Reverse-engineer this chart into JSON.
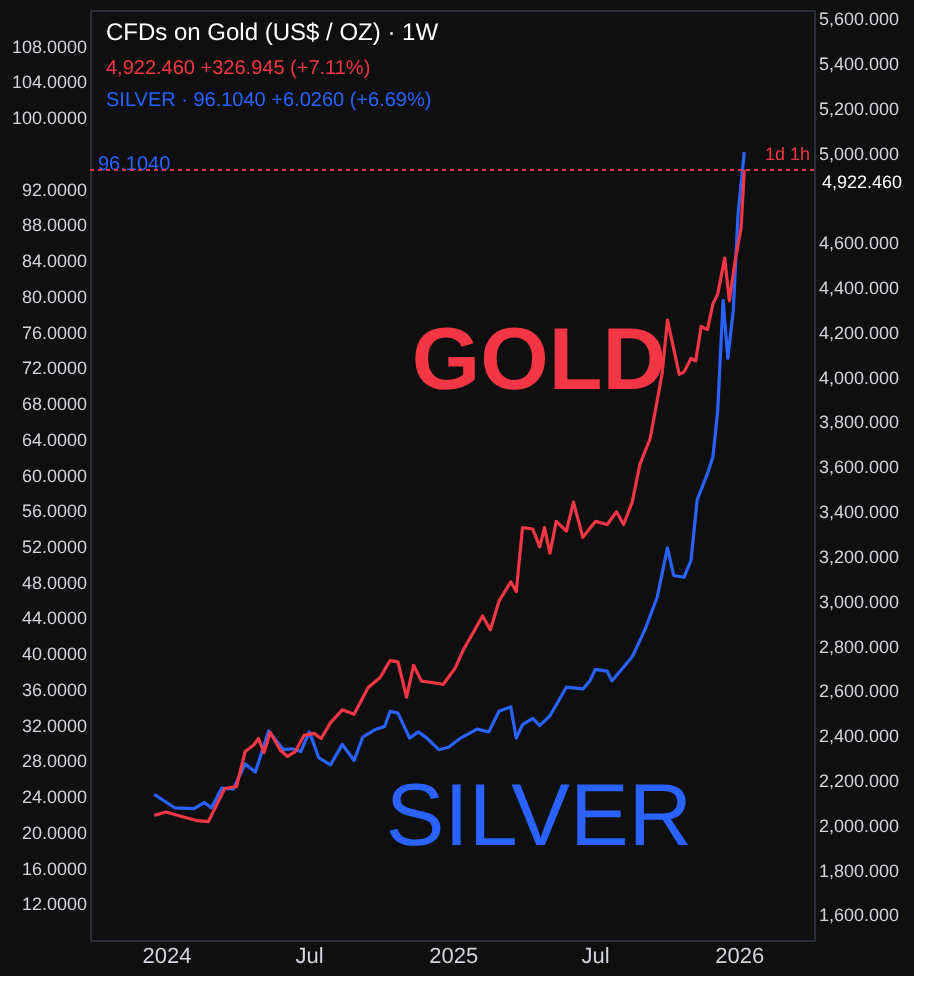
{
  "chart_data": {
    "type": "line",
    "title": "CFDs on Gold (US$ / OZ) · 1W",
    "annotations": [
      "4,922.460 +326.945 (+7.11%)",
      "SILVER · 96.1040 +6.0260 (+6.69%)",
      "96.1040",
      "1d 1h"
    ],
    "xlim": [
      "2023-09-26",
      "2026-04-07"
    ],
    "xticks": [
      {
        "value": "2024-01-01",
        "label": "2024"
      },
      {
        "value": "2024-07-01",
        "label": "Jul"
      },
      {
        "value": "2025-01-01",
        "label": "2025"
      },
      {
        "value": "2025-07-01",
        "label": "Jul"
      },
      {
        "value": "2026-01-01",
        "label": "2026"
      }
    ],
    "ylim": [
      7.9,
      112
    ],
    "yticks": [
      {
        "value": 12,
        "label": "12.0000"
      },
      {
        "value": 16,
        "label": "16.0000"
      },
      {
        "value": 20,
        "label": "20.0000"
      },
      {
        "value": 24,
        "label": "24.0000"
      },
      {
        "value": 28,
        "label": "28.0000"
      },
      {
        "value": 32,
        "label": "32.0000"
      },
      {
        "value": 36,
        "label": "36.0000"
      },
      {
        "value": 40,
        "label": "40.0000"
      },
      {
        "value": 44,
        "label": "44.0000"
      },
      {
        "value": 48,
        "label": "48.0000"
      },
      {
        "value": 52,
        "label": "52.0000"
      },
      {
        "value": 56,
        "label": "56.0000"
      },
      {
        "value": 60,
        "label": "60.0000"
      },
      {
        "value": 64,
        "label": "64.0000"
      },
      {
        "value": 68,
        "label": "68.0000"
      },
      {
        "value": 72,
        "label": "72.0000"
      },
      {
        "value": 76,
        "label": "76.0000"
      },
      {
        "value": 80,
        "label": "80.0000"
      },
      {
        "value": 84,
        "label": "84.0000"
      },
      {
        "value": 88,
        "label": "88.0000"
      },
      {
        "value": 92,
        "label": "92.0000"
      },
      {
        "value": 100,
        "label": "100.0000"
      },
      {
        "value": 104,
        "label": "104.0000"
      },
      {
        "value": 108,
        "label": "108.0000"
      }
    ],
    "y2lim": [
      1486,
      5636
    ],
    "y2ticks": [
      {
        "value": 1600,
        "label": "1,600.000"
      },
      {
        "value": 1800,
        "label": "1,800.000"
      },
      {
        "value": 2000,
        "label": "2,000.000"
      },
      {
        "value": 2200,
        "label": "2,200.000"
      },
      {
        "value": 2400,
        "label": "2,400.000"
      },
      {
        "value": 2600,
        "label": "2,600.000"
      },
      {
        "value": 2800,
        "label": "2,800.000"
      },
      {
        "value": 3000,
        "label": "3,000.000"
      },
      {
        "value": 3200,
        "label": "3,200.000"
      },
      {
        "value": 3400,
        "label": "3,400.000"
      },
      {
        "value": 3600,
        "label": "3,600.000"
      },
      {
        "value": 3800,
        "label": "3,800.000"
      },
      {
        "value": 4000,
        "label": "4,000.000"
      },
      {
        "value": 4200,
        "label": "4,200.000"
      },
      {
        "value": 4400,
        "label": "4,400.000"
      },
      {
        "value": 4600,
        "label": "4,600.000"
      },
      {
        "value": 5000,
        "label": "5,000.000"
      },
      {
        "value": 5200,
        "label": "5,200.000"
      },
      {
        "value": 5400,
        "label": "5,400.000"
      },
      {
        "value": 5600,
        "label": "5,600.000"
      }
    ],
    "ref_lines": [
      {
        "axis": "y2",
        "value": 4922.46,
        "label": "4,922.460",
        "color": "#f23645",
        "line_style": "dotted"
      }
    ],
    "grid": false,
    "marker": "none",
    "line_style": "solid",
    "series": [
      {
        "name": "SILVER",
        "color": "#2962ff",
        "axis": "y",
        "x": [
          "2023-12-17",
          "2024-01-12",
          "2024-02-06",
          "2024-02-19",
          "2024-02-28",
          "2024-03-12",
          "2024-03-27",
          "2024-04-11",
          "2024-04-24",
          "2024-05-11",
          "2024-05-20",
          "2024-05-30",
          "2024-06-10",
          "2024-06-21",
          "2024-07-02",
          "2024-07-14",
          "2024-07-29",
          "2024-08-13",
          "2024-08-28",
          "2024-09-08",
          "2024-09-25",
          "2024-10-06",
          "2024-10-13",
          "2024-10-23",
          "2024-11-07",
          "2024-11-18",
          "2024-11-29",
          "2024-12-14",
          "2024-12-27",
          "2025-01-11",
          "2025-02-01",
          "2025-02-16",
          "2025-03-01",
          "2025-03-16",
          "2025-03-23",
          "2025-03-31",
          "2025-04-13",
          "2025-04-22",
          "2025-05-05",
          "2025-05-26",
          "2025-06-16",
          "2025-06-25",
          "2025-07-02",
          "2025-07-17",
          "2025-07-23",
          "2025-08-18",
          "2025-09-04",
          "2025-09-19",
          "2025-10-02",
          "2025-10-10",
          "2025-10-23",
          "2025-11-01",
          "2025-11-09",
          "2025-11-22",
          "2025-11-29",
          "2025-12-05",
          "2025-12-12",
          "2025-12-18",
          "2025-12-25",
          "2025-12-31",
          "2026-01-08"
        ],
        "values": [
          24.2,
          22.7,
          22.6,
          23.3,
          22.7,
          24.9,
          24.8,
          27.6,
          26.7,
          31.3,
          30.3,
          29.2,
          29.3,
          29.0,
          31.2,
          28.3,
          27.5,
          29.8,
          28.0,
          30.6,
          31.5,
          31.8,
          33.5,
          33.3,
          30.5,
          31.2,
          30.5,
          29.2,
          29.5,
          30.5,
          31.5,
          31.2,
          33.5,
          34.0,
          30.5,
          32.0,
          32.7,
          31.9,
          33.0,
          36.2,
          36.0,
          36.9,
          38.2,
          38.0,
          36.9,
          39.6,
          42.8,
          46.3,
          51.8,
          48.7,
          48.5,
          50.4,
          57.2,
          60.1,
          62.0,
          67.0,
          79.5,
          73.0,
          78.4,
          89.1,
          96.1
        ]
      },
      {
        "name": "GOLD",
        "color": "#f23645",
        "axis": "y2",
        "x": [
          "2023-12-17",
          "2024-01-01",
          "2024-01-22",
          "2024-02-09",
          "2024-02-24",
          "2024-03-05",
          "2024-03-16",
          "2024-03-31",
          "2024-04-11",
          "2024-04-22",
          "2024-04-28",
          "2024-05-05",
          "2024-05-13",
          "2024-05-26",
          "2024-06-04",
          "2024-06-14",
          "2024-06-25",
          "2024-07-08",
          "2024-07-17",
          "2024-07-29",
          "2024-08-13",
          "2024-08-28",
          "2024-09-15",
          "2024-09-30",
          "2024-10-13",
          "2024-10-23",
          "2024-11-03",
          "2024-11-12",
          "2024-11-22",
          "2024-12-05",
          "2024-12-20",
          "2025-01-04",
          "2025-01-15",
          "2025-01-28",
          "2025-02-08",
          "2025-02-18",
          "2025-03-01",
          "2025-03-16",
          "2025-03-23",
          "2025-03-31",
          "2025-04-13",
          "2025-04-22",
          "2025-04-28",
          "2025-05-05",
          "2025-05-13",
          "2025-05-26",
          "2025-06-04",
          "2025-06-16",
          "2025-07-02",
          "2025-07-17",
          "2025-07-29",
          "2025-08-07",
          "2025-08-18",
          "2025-08-28",
          "2025-09-10",
          "2025-09-25",
          "2025-10-02",
          "2025-10-17",
          "2025-10-23",
          "2025-11-01",
          "2025-11-07",
          "2025-11-14",
          "2025-11-22",
          "2025-11-29",
          "2025-12-05",
          "2025-12-14",
          "2025-12-20",
          "2025-12-27",
          "2026-01-04",
          "2026-01-08"
        ],
        "values": [
          2042,
          2057,
          2036,
          2019,
          2014,
          2085,
          2162,
          2171,
          2327,
          2356,
          2385,
          2322,
          2413,
          2333,
          2305,
          2327,
          2399,
          2408,
          2385,
          2456,
          2513,
          2493,
          2613,
          2656,
          2733,
          2727,
          2570,
          2712,
          2641,
          2635,
          2627,
          2699,
          2784,
          2864,
          2932,
          2870,
          2998,
          3084,
          3041,
          3326,
          3320,
          3240,
          3326,
          3212,
          3354,
          3311,
          3440,
          3283,
          3354,
          3340,
          3397,
          3340,
          3440,
          3611,
          3725,
          4010,
          4252,
          4010,
          4020,
          4081,
          4070,
          4224,
          4210,
          4324,
          4367,
          4529,
          4338,
          4509,
          4666,
          4922.46
        ]
      }
    ]
  }
}
